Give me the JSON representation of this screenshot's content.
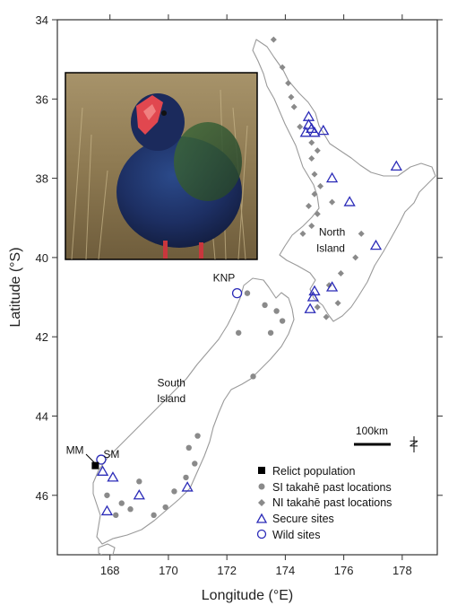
{
  "chart_data": {
    "type": "map",
    "xlabel": "Longitude (°E)",
    "ylabel": "Latitude (°S)",
    "xlim": [
      166.2,
      179.2
    ],
    "ylim": [
      47.5,
      34
    ],
    "x_ticks": [
      168,
      170,
      172,
      174,
      176,
      178
    ],
    "y_ticks": [
      34,
      36,
      38,
      40,
      42,
      44,
      46
    ],
    "labels": [
      {
        "text": "North",
        "lon": 175.5,
        "lat": 39.4
      },
      {
        "text": "Island",
        "lon": 175.5,
        "lat": 39.8
      },
      {
        "text": "South",
        "lon": 170.0,
        "lat": 43.2
      },
      {
        "text": "Island",
        "lon": 170.0,
        "lat": 43.6
      },
      {
        "text": "KNP",
        "lon": 171.9,
        "lat": 40.55
      },
      {
        "text": "MM",
        "lon": 166.8,
        "lat": 44.95
      },
      {
        "text": "SM",
        "lon": 168.0,
        "lat": 45.05
      }
    ],
    "scale_bar": {
      "label": "100km",
      "km": 100
    },
    "north_arrow": "N",
    "legend": [
      {
        "label": "Relict population",
        "symbol": "square"
      },
      {
        "label": "SI takahē past locations",
        "symbol": "dot"
      },
      {
        "label": "NI takahē past locations",
        "symbol": "diamond"
      },
      {
        "label": "Secure sites",
        "symbol": "triangle"
      },
      {
        "label": "Wild sites",
        "symbol": "circle"
      }
    ],
    "colors": {
      "past": "#8a8a8a",
      "sites": "#2b2bb8",
      "relict": "#000000",
      "coast": "#9a9a9a"
    },
    "relict_population": [
      {
        "lon": 167.5,
        "lat": 45.25
      }
    ],
    "wild_sites": [
      {
        "lon": 172.35,
        "lat": 40.9
      },
      {
        "lon": 167.7,
        "lat": 45.1
      }
    ],
    "secure_sites": [
      {
        "lon": 174.8,
        "lat": 36.45
      },
      {
        "lon": 174.8,
        "lat": 36.65
      },
      {
        "lon": 174.9,
        "lat": 36.75
      },
      {
        "lon": 174.7,
        "lat": 36.85
      },
      {
        "lon": 175.0,
        "lat": 36.85
      },
      {
        "lon": 175.3,
        "lat": 36.8
      },
      {
        "lon": 177.8,
        "lat": 37.7
      },
      {
        "lon": 175.6,
        "lat": 38.0
      },
      {
        "lon": 176.2,
        "lat": 38.6
      },
      {
        "lon": 177.1,
        "lat": 39.7
      },
      {
        "lon": 175.0,
        "lat": 40.85
      },
      {
        "lon": 175.6,
        "lat": 40.75
      },
      {
        "lon": 174.95,
        "lat": 41.0
      },
      {
        "lon": 174.85,
        "lat": 41.3
      },
      {
        "lon": 167.75,
        "lat": 45.4
      },
      {
        "lon": 168.1,
        "lat": 45.55
      },
      {
        "lon": 167.9,
        "lat": 46.4
      },
      {
        "lon": 169.0,
        "lat": 46.0
      },
      {
        "lon": 170.65,
        "lat": 45.8
      }
    ],
    "ni_past_locations": [
      {
        "lon": 173.6,
        "lat": 34.5
      },
      {
        "lon": 173.9,
        "lat": 35.2
      },
      {
        "lon": 174.1,
        "lat": 35.6
      },
      {
        "lon": 174.2,
        "lat": 35.95
      },
      {
        "lon": 174.3,
        "lat": 36.2
      },
      {
        "lon": 174.5,
        "lat": 36.7
      },
      {
        "lon": 174.9,
        "lat": 37.1
      },
      {
        "lon": 175.1,
        "lat": 37.3
      },
      {
        "lon": 174.9,
        "lat": 37.5
      },
      {
        "lon": 175.0,
        "lat": 37.9
      },
      {
        "lon": 175.2,
        "lat": 38.2
      },
      {
        "lon": 175.0,
        "lat": 38.4
      },
      {
        "lon": 174.8,
        "lat": 38.7
      },
      {
        "lon": 175.1,
        "lat": 38.9
      },
      {
        "lon": 174.9,
        "lat": 39.2
      },
      {
        "lon": 174.6,
        "lat": 39.4
      },
      {
        "lon": 175.6,
        "lat": 38.6
      },
      {
        "lon": 176.6,
        "lat": 39.4
      },
      {
        "lon": 176.4,
        "lat": 40.0
      },
      {
        "lon": 175.9,
        "lat": 40.4
      },
      {
        "lon": 175.5,
        "lat": 40.7
      },
      {
        "lon": 175.8,
        "lat": 41.15
      },
      {
        "lon": 175.4,
        "lat": 41.5
      },
      {
        "lon": 175.1,
        "lat": 41.25
      }
    ],
    "si_past_locations": [
      {
        "lon": 172.7,
        "lat": 40.9
      },
      {
        "lon": 173.3,
        "lat": 41.2
      },
      {
        "lon": 173.7,
        "lat": 41.35
      },
      {
        "lon": 173.9,
        "lat": 41.6
      },
      {
        "lon": 173.5,
        "lat": 41.9
      },
      {
        "lon": 172.4,
        "lat": 41.9
      },
      {
        "lon": 172.9,
        "lat": 43.0
      },
      {
        "lon": 171.0,
        "lat": 44.5
      },
      {
        "lon": 170.7,
        "lat": 44.8
      },
      {
        "lon": 170.9,
        "lat": 45.2
      },
      {
        "lon": 170.6,
        "lat": 45.55
      },
      {
        "lon": 170.2,
        "lat": 45.9
      },
      {
        "lon": 169.9,
        "lat": 46.3
      },
      {
        "lon": 169.5,
        "lat": 46.5
      },
      {
        "lon": 169.0,
        "lat": 45.65
      },
      {
        "lon": 168.4,
        "lat": 46.2
      },
      {
        "lon": 168.2,
        "lat": 46.5
      },
      {
        "lon": 167.9,
        "lat": 46.0
      },
      {
        "lon": 168.7,
        "lat": 46.35
      }
    ]
  }
}
